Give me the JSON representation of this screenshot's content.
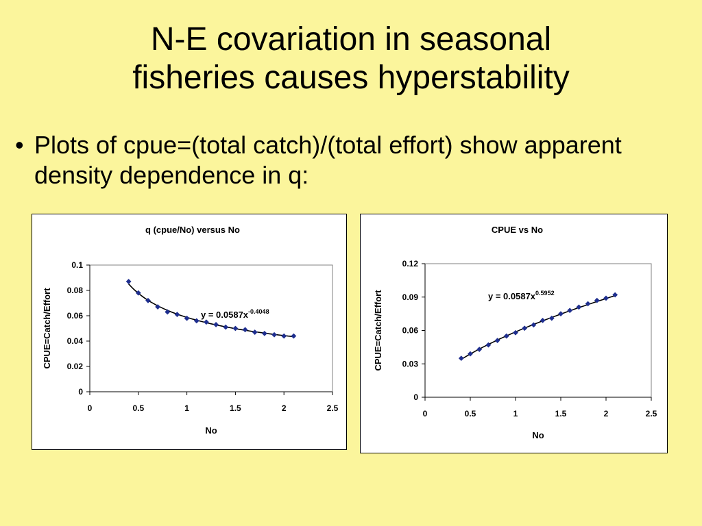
{
  "slide": {
    "title_line1": "N-E covariation in seasonal",
    "title_line2": "fisheries causes hyperstability",
    "bullet_symbol": "•",
    "bullet_text": "Plots of cpue=(total catch)/(total effort) show apparent density dependence in q:"
  },
  "chart_data": [
    {
      "type": "scatter",
      "title": "q (cpue/No) versus No",
      "xlabel": "No",
      "ylabel": "CPUE=Catch/Effort",
      "xlim": [
        0,
        2.5
      ],
      "ylim": [
        0,
        0.1
      ],
      "x_ticks": [
        "0",
        "0.5",
        "1",
        "1.5",
        "2",
        "2.5"
      ],
      "y_ticks": [
        "0",
        "0.02",
        "0.04",
        "0.06",
        "0.08",
        "0.1"
      ],
      "grid": false,
      "equation": "y = 0.0587x",
      "equation_exponent": "-0.4048",
      "trendline": {
        "a": 0.0587,
        "b": -0.4048
      },
      "series": [
        {
          "x": [
            0.4,
            0.5,
            0.6,
            0.7,
            0.8,
            0.9,
            1.0,
            1.1,
            1.2,
            1.3,
            1.4,
            1.5,
            1.6,
            1.7,
            1.8,
            1.9,
            2.0,
            2.1
          ],
          "y": [
            0.087,
            0.078,
            0.072,
            0.067,
            0.063,
            0.061,
            0.058,
            0.056,
            0.055,
            0.053,
            0.051,
            0.05,
            0.049,
            0.047,
            0.046,
            0.045,
            0.044,
            0.044
          ]
        }
      ],
      "colors": {
        "marker": "#1f2f8f",
        "line": "#000000"
      }
    },
    {
      "type": "scatter",
      "title": "CPUE vs No",
      "xlabel": "No",
      "ylabel": "CPUE=Catch/Effort",
      "xlim": [
        0,
        2.5
      ],
      "ylim": [
        0,
        0.12
      ],
      "x_ticks": [
        "0",
        "0.5",
        "1",
        "1.5",
        "2",
        "2.5"
      ],
      "y_ticks": [
        "0",
        "0.03",
        "0.06",
        "0.09",
        "0.12"
      ],
      "grid": false,
      "equation": "y = 0.0587x",
      "equation_exponent": "0.5952",
      "trendline": {
        "a": 0.0587,
        "b": 0.5952
      },
      "series": [
        {
          "x": [
            0.4,
            0.5,
            0.6,
            0.7,
            0.8,
            0.9,
            1.0,
            1.1,
            1.2,
            1.3,
            1.4,
            1.5,
            1.6,
            1.7,
            1.8,
            1.9,
            2.0,
            2.1
          ],
          "y": [
            0.035,
            0.039,
            0.043,
            0.047,
            0.051,
            0.055,
            0.058,
            0.062,
            0.065,
            0.069,
            0.071,
            0.075,
            0.078,
            0.081,
            0.084,
            0.087,
            0.089,
            0.092
          ]
        }
      ],
      "colors": {
        "marker": "#1f2f8f",
        "line": "#000000"
      }
    }
  ]
}
